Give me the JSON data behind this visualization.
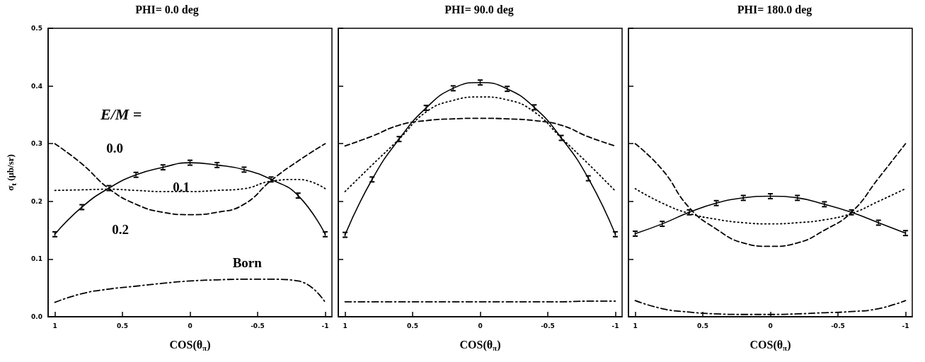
{
  "chart_data": [
    {
      "type": "line",
      "title": "PHI= 0.0 deg",
      "xlabel": "COS(θ$_{π}$)",
      "ylabel": "σ$_{t}$ (μb/sr)",
      "legend_title": "E/M =",
      "x": [
        1,
        0.8,
        0.6,
        0.4,
        0.2,
        0,
        -0.2,
        -0.4,
        -0.6,
        -0.8,
        -1
      ],
      "xlim": [
        1.05,
        -1.05
      ],
      "xticks": [
        1,
        0.5,
        0,
        -0.5,
        -1
      ],
      "ylim": [
        0,
        0.5
      ],
      "yticks": [
        {
          "value": 0,
          "label": "0.0"
        },
        {
          "value": 0.1,
          "label": "0.1"
        },
        {
          "value": 0.2,
          "label": "0.2"
        },
        {
          "value": 0.3,
          "label": "0.3"
        },
        {
          "value": 0.4,
          "label": "0.4"
        },
        {
          "value": 0.5,
          "label": "0.5"
        }
      ],
      "grid": false,
      "legend": false,
      "marker": "none",
      "series": [
        {
          "name": "0.0",
          "color": "#000000",
          "line_style": "solid",
          "values": [
            0.143,
            0.19,
            0.223,
            0.246,
            0.259,
            0.267,
            0.263,
            0.255,
            0.238,
            0.21,
            0.143
          ],
          "errors": [
            0.003,
            0.003,
            0.003,
            0.003,
            0.003,
            0.003,
            0.003,
            0.003,
            0.003,
            0.003,
            0.003
          ]
        },
        {
          "name": "0.1",
          "color": "#000000",
          "line_style": "dotted",
          "values": [
            0.219,
            0.22,
            0.221,
            0.219,
            0.217,
            0.217,
            0.219,
            0.222,
            0.235,
            0.238,
            0.222
          ]
        },
        {
          "name": "0.2",
          "color": "#000000",
          "line_style": "dashed",
          "values": [
            0.3,
            0.265,
            0.222,
            0.195,
            0.181,
            0.177,
            0.181,
            0.195,
            0.236,
            0.27,
            0.3
          ]
        },
        {
          "name": "Born",
          "color": "#000000",
          "line_style": "dashdot",
          "values": [
            0.025,
            0.04,
            0.048,
            0.053,
            0.058,
            0.062,
            0.064,
            0.065,
            0.065,
            0.062,
            0.025
          ]
        }
      ]
    },
    {
      "type": "line",
      "title": "PHI= 90.0 deg",
      "xlabel": "COS(θ$_{π}$)",
      "x": [
        1,
        0.8,
        0.6,
        0.4,
        0.2,
        0,
        -0.2,
        -0.4,
        -0.6,
        -0.8,
        -1
      ],
      "xlim": [
        1.05,
        -1.05
      ],
      "xticks": [
        1,
        0.5,
        0,
        -0.5,
        -1
      ],
      "ylim": [
        0,
        0.5
      ],
      "yticks": [
        {
          "value": 0,
          "label": null
        },
        {
          "value": 0.1,
          "label": null
        },
        {
          "value": 0.2,
          "label": null
        },
        {
          "value": 0.3,
          "label": null
        },
        {
          "value": 0.4,
          "label": null
        },
        {
          "value": 0.5,
          "label": null
        }
      ],
      "tick_labels": "x",
      "grid": false,
      "legend": false,
      "marker": "none",
      "series": [
        {
          "color": "#000000",
          "line_style": "solid",
          "values": [
            0.142,
            0.238,
            0.308,
            0.362,
            0.396,
            0.406,
            0.395,
            0.363,
            0.31,
            0.24,
            0.143
          ],
          "errors": [
            0.003,
            0.003,
            0.003,
            0.003,
            0.003,
            0.003,
            0.003,
            0.003,
            0.003,
            0.003,
            0.003
          ]
        },
        {
          "color": "#000000",
          "line_style": "dotted",
          "values": [
            0.217,
            0.263,
            0.308,
            0.355,
            0.375,
            0.381,
            0.376,
            0.355,
            0.31,
            0.265,
            0.218
          ]
        },
        {
          "color": "#000000",
          "line_style": "dashed",
          "values": [
            0.296,
            0.313,
            0.332,
            0.34,
            0.343,
            0.344,
            0.343,
            0.34,
            0.332,
            0.312,
            0.296
          ]
        },
        {
          "color": "#000000",
          "line_style": "dashdot",
          "values": [
            0.026,
            0.026,
            0.026,
            0.026,
            0.026,
            0.026,
            0.026,
            0.026,
            0.026,
            0.027,
            0.027
          ]
        }
      ]
    },
    {
      "type": "line",
      "title": "PHI= 180.0 deg",
      "xlabel": "COS(θ$_{π}$)",
      "x": [
        1,
        0.8,
        0.6,
        0.4,
        0.2,
        0,
        -0.2,
        -0.4,
        -0.6,
        -0.8,
        -1
      ],
      "xlim": [
        1.05,
        -1.05
      ],
      "xticks": [
        1,
        0.5,
        0,
        -0.5,
        -1
      ],
      "ylim": [
        0,
        0.5
      ],
      "yticks": [
        {
          "value": 0,
          "label": null
        },
        {
          "value": 0.1,
          "label": null
        },
        {
          "value": 0.2,
          "label": null
        },
        {
          "value": 0.3,
          "label": null
        },
        {
          "value": 0.4,
          "label": null
        },
        {
          "value": 0.5,
          "label": null
        }
      ],
      "tick_labels": "x",
      "grid": false,
      "legend": false,
      "marker": "none",
      "series": [
        {
          "color": "#000000",
          "line_style": "solid",
          "values": [
            0.144,
            0.161,
            0.181,
            0.197,
            0.206,
            0.209,
            0.206,
            0.195,
            0.181,
            0.163,
            0.145
          ],
          "errors": [
            0.003,
            0.003,
            0.003,
            0.003,
            0.003,
            0.003,
            0.003,
            0.003,
            0.003,
            0.003,
            0.003
          ]
        },
        {
          "color": "#000000",
          "line_style": "dotted",
          "values": [
            0.222,
            0.197,
            0.179,
            0.169,
            0.163,
            0.161,
            0.163,
            0.168,
            0.179,
            0.2,
            0.222
          ]
        },
        {
          "color": "#000000",
          "line_style": "dashed",
          "values": [
            0.3,
            0.255,
            0.189,
            0.152,
            0.128,
            0.122,
            0.128,
            0.15,
            0.181,
            0.24,
            0.3
          ]
        },
        {
          "color": "#000000",
          "line_style": "dashdot",
          "values": [
            0.028,
            0.014,
            0.008,
            0.005,
            0.004,
            0.004,
            0.005,
            0.007,
            0.009,
            0.014,
            0.028
          ]
        }
      ]
    }
  ]
}
